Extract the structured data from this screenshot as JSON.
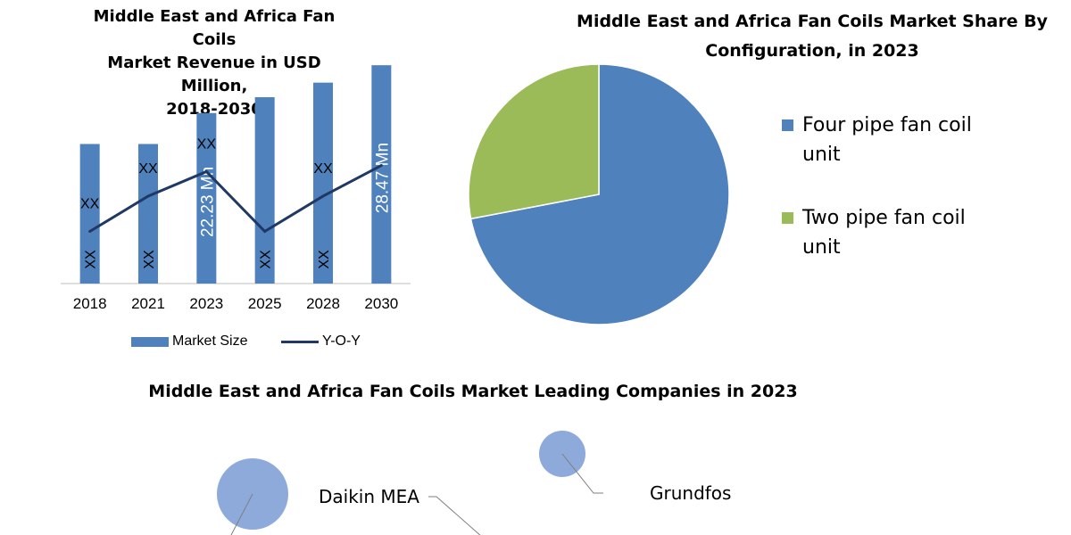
{
  "bar_chart": {
    "title_lines": [
      "Middle East and Africa Fan Coils",
      "Market Revenue in USD Million,",
      "2018-2030"
    ],
    "legend": {
      "bar_label": "Market Size",
      "line_label": "Y-O-Y"
    },
    "colors": {
      "bar": "#4f81bd",
      "line": "#1f3864"
    }
  },
  "pie_chart": {
    "title_lines": [
      "Middle East and Africa Fan Coils Market Share By",
      "Configuration, in 2023"
    ],
    "colors": {
      "four_pipe": "#4f81bd",
      "two_pipe": "#9bbb59"
    }
  },
  "companies": {
    "title": "Middle East and Africa Fan Coils Market Leading Companies in 2023",
    "items": [
      {
        "label": "Daikin MEA"
      },
      {
        "label": "Grundfos"
      }
    ],
    "bubble_color": "#8eaadb"
  },
  "chart_data": [
    {
      "type": "bar",
      "title": "Middle East and Africa Fan Coils Market Revenue in USD Million, 2018-2030",
      "categories": [
        "2018",
        "2021",
        "2023",
        "2025",
        "2028",
        "2030"
      ],
      "series": [
        {
          "name": "Market Size",
          "values": [
            18.2,
            18.2,
            22.23,
            24.3,
            26.2,
            28.47
          ]
        },
        {
          "name": "Y-O-Y",
          "type": "line",
          "values": [
            6.8,
            11.4,
            14.6,
            6.8,
            11.4,
            15.4
          ]
        }
      ],
      "data_labels": {
        "bar_inner": [
          "XX",
          "XX",
          "22.23 Mn",
          "XX",
          "XX",
          "28.47 Mn"
        ],
        "line": [
          "XX",
          "XX",
          "XX",
          "",
          "XX",
          ""
        ]
      },
      "ylim": [
        0,
        30
      ],
      "xlabel": "",
      "ylabel": "",
      "grid": false,
      "legend_position": "bottom"
    },
    {
      "type": "pie",
      "title": "Middle East and Africa Fan Coils Market Share By Configuration, in 2023",
      "labels": [
        "Four pipe fan coil unit",
        "Two pipe fan coil unit"
      ],
      "values": [
        72,
        28
      ],
      "legend_position": "right"
    }
  ]
}
